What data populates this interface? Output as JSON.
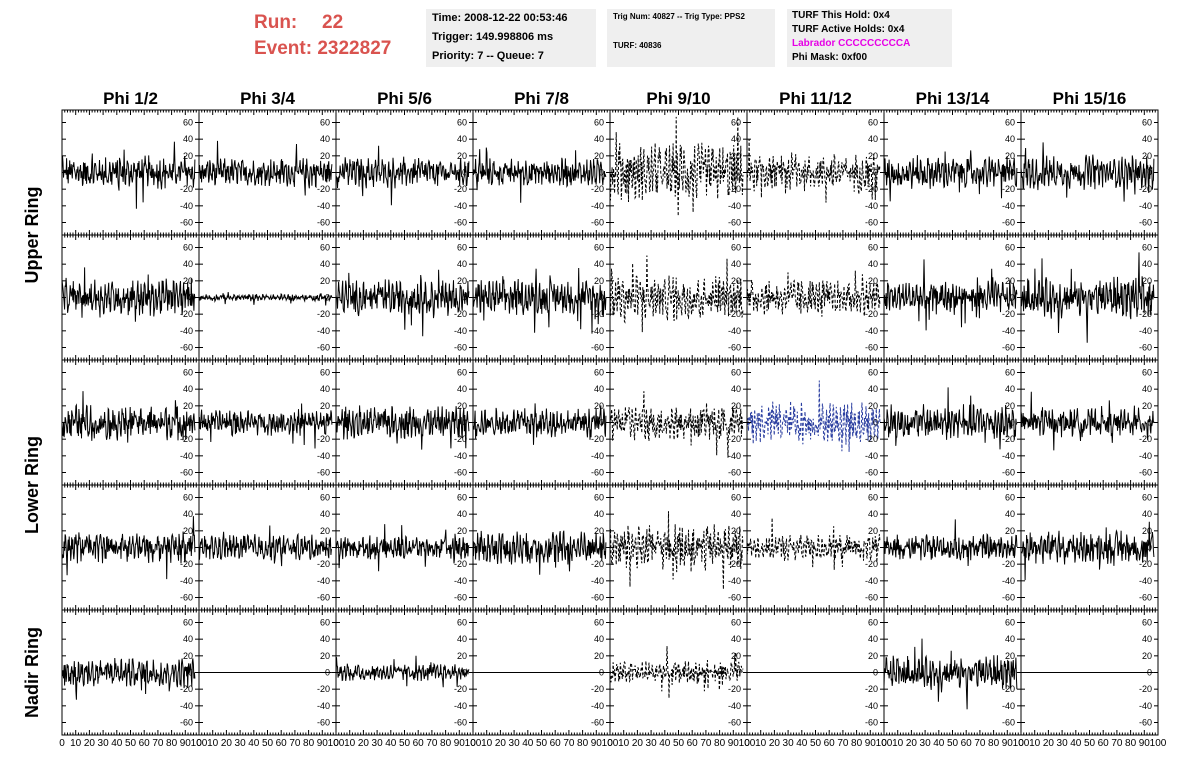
{
  "header": {
    "run_label": "Run:",
    "run_value": "22",
    "event_label": "Event:",
    "event_value": "2322827",
    "time": "Time: 2008-12-22 00:53:46",
    "trigger": "Trigger: 149.998806 ms",
    "priority": "Priority: 7 -- Queue: 7",
    "trig_num": "Trig Num: 40827 -- Trig Type: PPS2",
    "turf": "TURF: 40836",
    "turf_this_hold": "TURF This Hold: 0x4",
    "turf_active_holds": "TURF Active Holds: 0x4",
    "labrador": "Labrador CCCCCCCCCA",
    "phi_mask": "Phi Mask: 0xf00",
    "colors": {
      "run": "#d9534f",
      "labrador": "#e600e6",
      "info_bg": "#efefef"
    }
  },
  "chart_data": {
    "type": "line",
    "columns": [
      "Phi 1/2",
      "Phi 3/4",
      "Phi 5/6",
      "Phi 7/8",
      "Phi 9/10",
      "Phi 11/12",
      "Phi 13/14",
      "Phi 15/16"
    ],
    "rows": [
      "Upper Ring",
      "Upper Ring",
      "Lower Ring",
      "Lower Ring",
      "Nadir Ring"
    ],
    "row_labels": [
      "Upper Ring",
      "Lower Ring",
      "Nadir Ring"
    ],
    "xlim": [
      0,
      100
    ],
    "ylim": [
      -75,
      75
    ],
    "y_ticks": [
      60,
      40,
      20,
      0,
      -20,
      -40,
      -60
    ],
    "x_ticks": [
      0,
      10,
      20,
      30,
      40,
      50,
      60,
      70,
      80,
      90,
      100
    ],
    "x_tick_labels": [
      "0",
      "10",
      "20",
      "30",
      "40",
      "50",
      "60",
      "70",
      "80",
      "90",
      "100"
    ],
    "samples_per_trace": 260,
    "waveforms": [
      [
        {
          "amp": 14,
          "style": "solid",
          "color": "#000000"
        },
        {
          "amp": 12,
          "style": "solid",
          "color": "#000000"
        },
        {
          "amp": 13,
          "style": "solid",
          "color": "#000000"
        },
        {
          "amp": 12,
          "style": "solid",
          "color": "#000000"
        },
        {
          "amp": 24,
          "style": "dashed",
          "color": "#000000"
        },
        {
          "amp": 16,
          "style": "dashed",
          "color": "#000000"
        },
        {
          "amp": 14,
          "style": "solid",
          "color": "#000000"
        },
        {
          "amp": 14,
          "style": "solid",
          "color": "#000000"
        }
      ],
      [
        {
          "amp": 16,
          "style": "solid",
          "color": "#000000"
        },
        {
          "amp": 3,
          "style": "solid",
          "color": "#000000"
        },
        {
          "amp": 15,
          "style": "solid",
          "color": "#000000"
        },
        {
          "amp": 15,
          "style": "solid",
          "color": "#000000"
        },
        {
          "amp": 20,
          "style": "dashed",
          "color": "#000000"
        },
        {
          "amp": 15,
          "style": "dashed",
          "color": "#000000"
        },
        {
          "amp": 14,
          "style": "solid",
          "color": "#000000"
        },
        {
          "amp": 17,
          "style": "solid",
          "color": "#000000"
        }
      ],
      [
        {
          "amp": 15,
          "style": "solid",
          "color": "#000000"
        },
        {
          "amp": 11,
          "style": "solid",
          "color": "#000000"
        },
        {
          "amp": 14,
          "style": "solid",
          "color": "#000000"
        },
        {
          "amp": 12,
          "style": "solid",
          "color": "#000000"
        },
        {
          "amp": 16,
          "style": "dashed",
          "color": "#000000"
        },
        {
          "amp": 18,
          "style": "dashed",
          "color": "#2a3ea0"
        },
        {
          "amp": 15,
          "style": "solid",
          "color": "#000000"
        },
        {
          "amp": 12,
          "style": "solid",
          "color": "#000000"
        }
      ],
      [
        {
          "amp": 13,
          "style": "solid",
          "color": "#000000"
        },
        {
          "amp": 11,
          "style": "solid",
          "color": "#000000"
        },
        {
          "amp": 10,
          "style": "solid",
          "color": "#000000"
        },
        {
          "amp": 14,
          "style": "solid",
          "color": "#000000"
        },
        {
          "amp": 20,
          "style": "dashed",
          "color": "#000000"
        },
        {
          "amp": 11,
          "style": "dashed",
          "color": "#000000"
        },
        {
          "amp": 11,
          "style": "solid",
          "color": "#000000"
        },
        {
          "amp": 14,
          "style": "solid",
          "color": "#000000"
        }
      ],
      [
        {
          "amp": 13,
          "style": "solid",
          "color": "#000000"
        },
        {
          "amp": 0,
          "style": "solid",
          "color": "#000000"
        },
        {
          "amp": 7,
          "style": "solid",
          "color": "#000000"
        },
        {
          "amp": 0,
          "style": "solid",
          "color": "#000000"
        },
        {
          "amp": 10,
          "style": "dashed",
          "color": "#000000"
        },
        {
          "amp": 0,
          "style": "solid",
          "color": "#000000"
        },
        {
          "amp": 14,
          "style": "solid",
          "color": "#000000"
        },
        {
          "amp": 0,
          "style": "solid",
          "color": "#000000"
        }
      ]
    ]
  }
}
